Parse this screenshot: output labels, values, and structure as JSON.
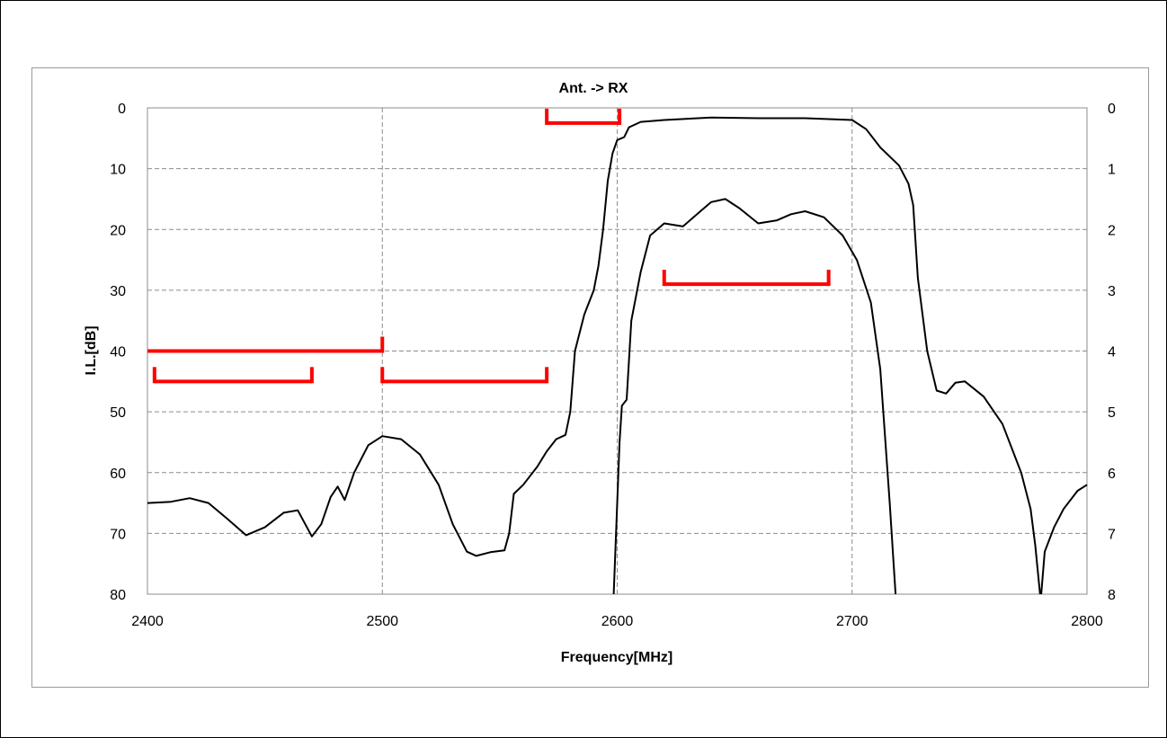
{
  "chart_data": {
    "type": "line",
    "title": "Ant. -> RX",
    "xlabel": "Frequency[MHz]",
    "ylabel": "I.L.[dB]",
    "xlim": [
      2400,
      2800
    ],
    "ylim": [
      0,
      80
    ],
    "y2lim": [
      0,
      8
    ],
    "y_inverted": true,
    "grid": true,
    "x_ticks": [
      "2400",
      "2500",
      "2600",
      "2700",
      "2800"
    ],
    "y_ticks": [
      "0",
      "10",
      "20",
      "30",
      "40",
      "50",
      "60",
      "70",
      "80"
    ],
    "y2_ticks": [
      "0",
      "1",
      "2",
      "3",
      "4",
      "5",
      "6",
      "7",
      "8"
    ],
    "colors": {
      "curve": "#000000",
      "spec": "#ff0000",
      "grid": "#8c8c8c"
    },
    "series": [
      {
        "axis": "left",
        "points": [
          [
            2400,
            65
          ],
          [
            2410,
            64.8
          ],
          [
            2418,
            64.2
          ],
          [
            2426,
            65
          ],
          [
            2434,
            67.6
          ],
          [
            2442,
            70.3
          ],
          [
            2450,
            69
          ],
          [
            2458,
            66.6
          ],
          [
            2464,
            66.2
          ],
          [
            2470,
            70.5
          ],
          [
            2474,
            68.5
          ],
          [
            2478,
            64
          ],
          [
            2481,
            62.3
          ],
          [
            2484,
            64.5
          ],
          [
            2488,
            60
          ],
          [
            2494,
            55.5
          ],
          [
            2500,
            54
          ],
          [
            2508,
            54.5
          ],
          [
            2516,
            57
          ],
          [
            2524,
            62
          ],
          [
            2530,
            68.5
          ],
          [
            2536,
            73
          ],
          [
            2540,
            73.7
          ],
          [
            2546,
            73.1
          ],
          [
            2552,
            72.8
          ],
          [
            2554,
            70
          ],
          [
            2556,
            63.5
          ],
          [
            2560,
            62
          ],
          [
            2566,
            59
          ],
          [
            2570,
            56.5
          ],
          [
            2574,
            54.5
          ],
          [
            2578,
            53.8
          ],
          [
            2580,
            50
          ],
          [
            2582,
            40
          ],
          [
            2586,
            34
          ],
          [
            2590,
            30
          ],
          [
            2592,
            26
          ],
          [
            2594,
            20
          ],
          [
            2596,
            12
          ],
          [
            2598,
            7.5
          ],
          [
            2600,
            5.3
          ],
          [
            2603,
            4.8
          ],
          [
            2605,
            3.2
          ],
          [
            2610,
            2.3
          ],
          [
            2620,
            2
          ],
          [
            2640,
            1.6
          ],
          [
            2660,
            1.7
          ],
          [
            2680,
            1.7
          ],
          [
            2700,
            2
          ],
          [
            2706,
            3.5
          ],
          [
            2712,
            6.5
          ],
          [
            2720,
            9.5
          ],
          [
            2724,
            12.5
          ],
          [
            2726,
            16
          ],
          [
            2728,
            28
          ],
          [
            2732,
            40
          ],
          [
            2736,
            46.5
          ],
          [
            2740,
            47
          ],
          [
            2744,
            45.2
          ],
          [
            2748,
            45
          ],
          [
            2756,
            47.5
          ],
          [
            2764,
            52
          ],
          [
            2772,
            60
          ],
          [
            2776,
            66
          ],
          [
            2778,
            72
          ],
          [
            2780,
            80
          ]
        ]
      },
      {
        "axis": "right",
        "points": [
          [
            2598.5,
            8
          ],
          [
            2600,
            6.5
          ],
          [
            2601,
            5.5
          ],
          [
            2602,
            4.9
          ],
          [
            2604,
            4.8
          ],
          [
            2606,
            3.5
          ],
          [
            2610,
            2.7
          ],
          [
            2614,
            2.1
          ],
          [
            2620,
            1.9
          ],
          [
            2628,
            1.95
          ],
          [
            2634,
            1.75
          ],
          [
            2640,
            1.55
          ],
          [
            2646,
            1.5
          ],
          [
            2652,
            1.65
          ],
          [
            2660,
            1.9
          ],
          [
            2668,
            1.85
          ],
          [
            2674,
            1.75
          ],
          [
            2680,
            1.7
          ],
          [
            2688,
            1.8
          ],
          [
            2696,
            2.1
          ],
          [
            2702,
            2.5
          ],
          [
            2708,
            3.2
          ],
          [
            2712,
            4.3
          ],
          [
            2716,
            6.5
          ],
          [
            2718.5,
            8
          ]
        ]
      },
      {
        "axis": "right",
        "points": [
          [
            2780.5,
            8
          ],
          [
            2782,
            7.3
          ],
          [
            2786,
            6.9
          ],
          [
            2790,
            6.6
          ],
          [
            2796,
            6.3
          ],
          [
            2800,
            6.2
          ]
        ]
      }
    ],
    "spec_masks": [
      {
        "x": [
          2400,
          2500
        ],
        "y": 40,
        "ticks": [
          2500
        ]
      },
      {
        "x": [
          2403,
          2470
        ],
        "y": 45,
        "ticks": [
          2403,
          2470
        ]
      },
      {
        "x": [
          2500,
          2570
        ],
        "y": 45,
        "ticks": [
          2500,
          2570
        ]
      },
      {
        "x": [
          2570,
          2601
        ],
        "y": 2.5,
        "ticks": [
          2570,
          2601
        ]
      },
      {
        "x": [
          2620,
          2690
        ],
        "y": 29,
        "ticks": [
          2620,
          2690
        ]
      }
    ]
  }
}
